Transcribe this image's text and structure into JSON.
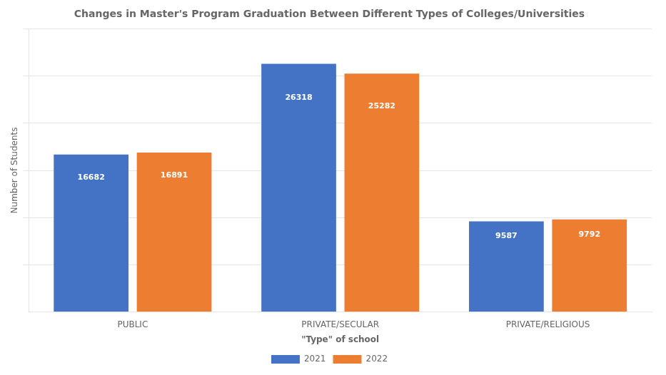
{
  "chart_data": {
    "type": "bar",
    "title": "Changes in Master's Program Graduation Between Different Types of Colleges/Universities",
    "xlabel": "\"Type\" of school",
    "ylabel": "Number of Students",
    "categories": [
      "PUBLIC",
      "PRIVATE/SECULAR",
      "PRIVATE/RELIGIOUS"
    ],
    "series": [
      {
        "name": "2021",
        "color": "#4472C4",
        "values": [
          16682,
          26318,
          9587
        ]
      },
      {
        "name": "2022",
        "color": "#ED7D31",
        "values": [
          16891,
          25282,
          9792
        ]
      }
    ],
    "ylim": [
      0,
      30000
    ],
    "yticks": [
      5000,
      10000,
      15000,
      20000,
      25000,
      30000
    ],
    "grid": true,
    "legend": "bottom",
    "data_labels": true,
    "tick_labels": "x"
  }
}
